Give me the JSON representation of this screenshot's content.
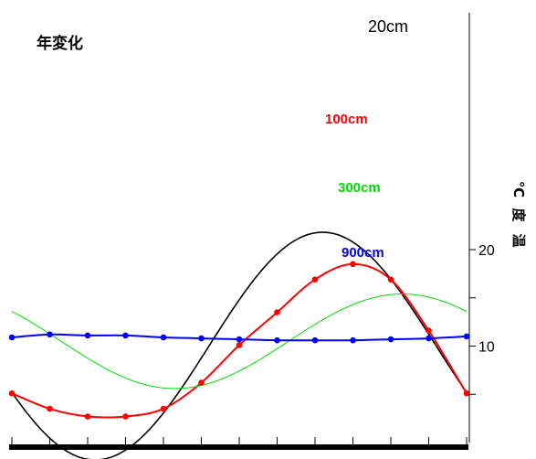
{
  "chart_data": {
    "type": "line",
    "title": "年変化",
    "ylabel": "温 度 ℃",
    "yticks": [
      20,
      10
    ],
    "ylim": [
      0,
      22.4
    ],
    "xlim": [
      0,
      12
    ],
    "xtick_count": 13,
    "grid": false,
    "series": [
      {
        "name": "20cm",
        "color": "#000000",
        "markers": false,
        "model": {
          "mean": 10.0,
          "amplitude": 11.8,
          "peak_month": 8.2,
          "x_start": 0,
          "x_end": 12
        }
      },
      {
        "name": "100cm",
        "color": "#ff0000",
        "markers": true,
        "x": [
          0,
          1,
          2,
          3,
          4,
          5,
          6,
          7,
          8,
          9,
          10,
          11,
          12
        ],
        "y": [
          5.1,
          3.5,
          2.7,
          2.7,
          3.5,
          6.2,
          10.1,
          13.5,
          16.9,
          18.5,
          16.9,
          11.6,
          5.1
        ]
      },
      {
        "name": "300cm",
        "color": "#00dd00",
        "markers": false,
        "model": {
          "mean": 10.5,
          "amplitude": 4.9,
          "peak_month": 10.3,
          "x_start": 0,
          "x_end": 12
        }
      },
      {
        "name": "900cm",
        "color": "#0000ff",
        "markers": true,
        "x": [
          0,
          1,
          2,
          3,
          4,
          5,
          6,
          7,
          8,
          9,
          10,
          11,
          12
        ],
        "y": [
          10.9,
          11.2,
          11.1,
          11.1,
          10.9,
          10.8,
          10.7,
          10.6,
          10.6,
          10.6,
          10.7,
          10.8,
          11.0
        ]
      }
    ]
  }
}
